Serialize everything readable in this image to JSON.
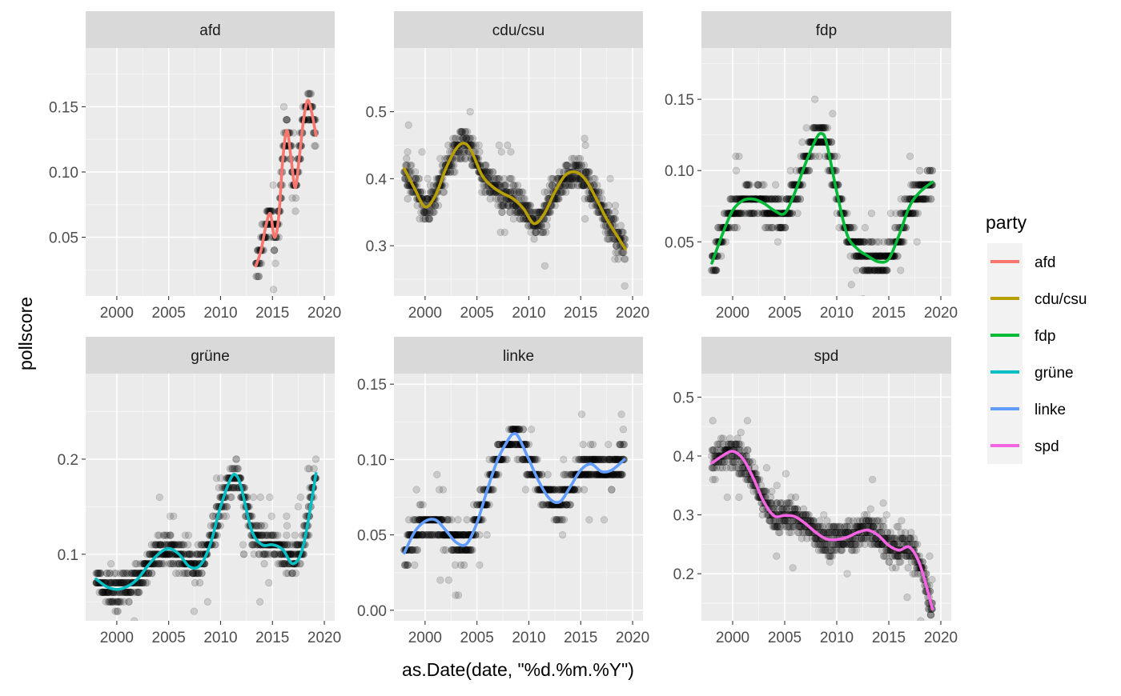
{
  "figure": {
    "xlabel": "as.Date(date, \"%d.%m.%Y\")",
    "ylabel": "pollscore"
  },
  "legend": {
    "title": "party",
    "items": [
      {
        "label": "afd",
        "color": "#F8766D"
      },
      {
        "label": "cdu/csu",
        "color": "#B79F00"
      },
      {
        "label": "fdp",
        "color": "#00BA38"
      },
      {
        "label": "grüne",
        "color": "#00BFC4"
      },
      {
        "label": "linke",
        "color": "#619CFF"
      },
      {
        "label": "spd",
        "color": "#F564E3"
      }
    ]
  },
  "chart_data": [
    {
      "type": "scatter",
      "facet": "afd",
      "color": "#F8766D",
      "xlim": [
        1997,
        2021
      ],
      "ylim": [
        0.005,
        0.195
      ],
      "xticks": [
        "2000",
        "2005",
        "2010",
        "2015",
        "2020"
      ],
      "yticks": [
        "0.05",
        "0.10",
        "0.15"
      ],
      "points_note": "semi-transparent black poll points scattered around the smoother",
      "smooth": {
        "x": [
          2013.4,
          2013.9,
          2014.4,
          2014.8,
          2015.2,
          2015.6,
          2016.0,
          2016.4,
          2016.8,
          2017.2,
          2017.6,
          2018.0,
          2018.4,
          2018.8,
          2019.2
        ],
        "y": [
          0.028,
          0.04,
          0.06,
          0.068,
          0.05,
          0.065,
          0.11,
          0.132,
          0.11,
          0.088,
          0.112,
          0.14,
          0.155,
          0.145,
          0.128
        ]
      }
    },
    {
      "type": "scatter",
      "facet": "cdu/csu",
      "color": "#B79F00",
      "xlim": [
        1997,
        2021
      ],
      "ylim": [
        0.225,
        0.595
      ],
      "xticks": [
        "2000",
        "2005",
        "2010",
        "2015",
        "2020"
      ],
      "yticks": [
        "0.3",
        "0.4",
        "0.5"
      ],
      "points_note": "semi-transparent black poll points scattered around the smoother",
      "smooth": {
        "x": [
          1998.0,
          1999.0,
          2000.0,
          2001.0,
          2002.0,
          2003.0,
          2003.8,
          2004.5,
          2005.5,
          2006.5,
          2007.5,
          2008.5,
          2009.5,
          2010.5,
          2011.5,
          2012.5,
          2013.5,
          2014.5,
          2015.5,
          2016.5,
          2017.5,
          2018.5,
          2019.3
        ],
        "y": [
          0.415,
          0.385,
          0.358,
          0.375,
          0.415,
          0.445,
          0.453,
          0.44,
          0.405,
          0.388,
          0.378,
          0.37,
          0.355,
          0.333,
          0.348,
          0.38,
          0.405,
          0.41,
          0.398,
          0.37,
          0.34,
          0.315,
          0.295
        ]
      }
    },
    {
      "type": "scatter",
      "facet": "fdp",
      "color": "#00BA38",
      "xlim": [
        1997,
        2021
      ],
      "ylim": [
        0.012,
        0.186
      ],
      "xticks": [
        "2000",
        "2005",
        "2010",
        "2015",
        "2020"
      ],
      "yticks": [
        "0.05",
        "0.10",
        "0.15"
      ],
      "points_note": "semi-transparent black poll points scattered around the smoother",
      "smooth": {
        "x": [
          1998.0,
          1999.0,
          2000.0,
          2001.0,
          2002.0,
          2003.0,
          2004.0,
          2005.0,
          2006.0,
          2007.0,
          2008.0,
          2008.5,
          2009.0,
          2010.0,
          2011.0,
          2012.0,
          2013.0,
          2014.0,
          2015.0,
          2016.0,
          2017.0,
          2018.0,
          2019.2
        ],
        "y": [
          0.035,
          0.055,
          0.072,
          0.079,
          0.08,
          0.077,
          0.072,
          0.07,
          0.085,
          0.105,
          0.122,
          0.126,
          0.12,
          0.085,
          0.055,
          0.045,
          0.04,
          0.036,
          0.038,
          0.055,
          0.075,
          0.085,
          0.092
        ]
      }
    },
    {
      "type": "scatter",
      "facet": "grüne",
      "color": "#00BFC4",
      "xlim": [
        1997,
        2021
      ],
      "ylim": [
        0.03,
        0.29
      ],
      "xticks": [
        "2000",
        "2005",
        "2010",
        "2015",
        "2020"
      ],
      "yticks": [
        "0.1",
        "0.2"
      ],
      "points_note": "semi-transparent black poll points scattered around the smoother",
      "smooth": {
        "x": [
          1998.0,
          1999.0,
          2000.0,
          2001.0,
          2002.0,
          2003.0,
          2004.0,
          2005.0,
          2006.0,
          2007.0,
          2008.0,
          2009.0,
          2010.0,
          2011.0,
          2011.5,
          2012.0,
          2013.0,
          2014.0,
          2015.0,
          2016.0,
          2017.0,
          2018.0,
          2019.2
        ],
        "y": [
          0.074,
          0.066,
          0.063,
          0.066,
          0.074,
          0.088,
          0.1,
          0.106,
          0.1,
          0.087,
          0.088,
          0.11,
          0.15,
          0.18,
          0.183,
          0.17,
          0.125,
          0.11,
          0.11,
          0.105,
          0.09,
          0.11,
          0.185
        ]
      }
    },
    {
      "type": "scatter",
      "facet": "linke",
      "color": "#619CFF",
      "xlim": [
        1997,
        2021
      ],
      "ylim": [
        -0.007,
        0.157
      ],
      "xticks": [
        "2000",
        "2005",
        "2010",
        "2015",
        "2020"
      ],
      "yticks": [
        "0.00",
        "0.05",
        "0.10",
        "0.15"
      ],
      "points_note": "semi-transparent black poll points scattered around the smoother",
      "smooth": {
        "x": [
          1998.0,
          1999.0,
          2000.0,
          2001.0,
          2002.0,
          2003.0,
          2004.0,
          2005.0,
          2006.0,
          2007.0,
          2008.0,
          2008.5,
          2009.0,
          2010.0,
          2011.0,
          2012.0,
          2013.0,
          2014.0,
          2015.0,
          2016.0,
          2017.0,
          2018.0,
          2019.2
        ],
        "y": [
          0.038,
          0.052,
          0.059,
          0.06,
          0.053,
          0.045,
          0.044,
          0.058,
          0.08,
          0.1,
          0.113,
          0.117,
          0.115,
          0.1,
          0.085,
          0.074,
          0.072,
          0.082,
          0.093,
          0.097,
          0.092,
          0.093,
          0.1
        ]
      }
    },
    {
      "type": "scatter",
      "facet": "spd",
      "color": "#F564E3",
      "xlim": [
        1997,
        2021
      ],
      "ylim": [
        0.12,
        0.54
      ],
      "xticks": [
        "2000",
        "2005",
        "2010",
        "2015",
        "2020"
      ],
      "yticks": [
        "0.2",
        "0.3",
        "0.4",
        "0.5"
      ],
      "points_note": "semi-transparent black poll points scattered around the smoother",
      "smooth": {
        "x": [
          1998.0,
          1999.0,
          2000.0,
          2001.0,
          2002.0,
          2003.0,
          2004.0,
          2005.0,
          2006.0,
          2007.0,
          2008.0,
          2009.0,
          2010.0,
          2011.0,
          2012.0,
          2013.0,
          2014.0,
          2015.0,
          2016.0,
          2017.0,
          2018.0,
          2019.2
        ],
        "y": [
          0.388,
          0.4,
          0.408,
          0.395,
          0.362,
          0.322,
          0.298,
          0.299,
          0.297,
          0.285,
          0.27,
          0.259,
          0.258,
          0.262,
          0.27,
          0.274,
          0.265,
          0.248,
          0.24,
          0.245,
          0.215,
          0.14
        ]
      }
    }
  ]
}
